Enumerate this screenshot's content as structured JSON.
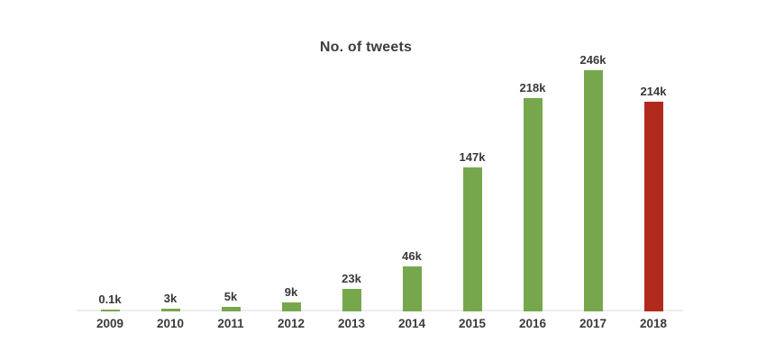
{
  "chart": {
    "title": "No. of tweets"
  },
  "chart_data": {
    "type": "bar",
    "title": "No. of tweets",
    "categories": [
      "2009",
      "2010",
      "2011",
      "2012",
      "2013",
      "2014",
      "2015",
      "2016",
      "2017",
      "2018"
    ],
    "values": [
      0.1,
      3,
      5,
      9,
      23,
      46,
      147,
      218,
      246,
      214
    ],
    "value_labels": [
      "0.1k",
      "3k",
      "5k",
      "9k",
      "23k",
      "46k",
      "147k",
      "218k",
      "246k",
      "214k"
    ],
    "unit": "thousands of tweets",
    "xlabel": "",
    "ylabel": "",
    "ylim": [
      0,
      250
    ],
    "grid": false,
    "legend": false,
    "bar_colors": [
      "#77a74d",
      "#77a74d",
      "#77a74d",
      "#77a74d",
      "#77a74d",
      "#77a74d",
      "#77a74d",
      "#77a74d",
      "#77a74d",
      "#b2291d"
    ],
    "default_bar_color": "#77a74d",
    "highlight_bar_color": "#b2291d",
    "highlight_category": "2018",
    "axis_line_color": "#ececec",
    "label_color": "#383838",
    "title_color": "#3d3d3d",
    "background_color": "#ffffff"
  }
}
